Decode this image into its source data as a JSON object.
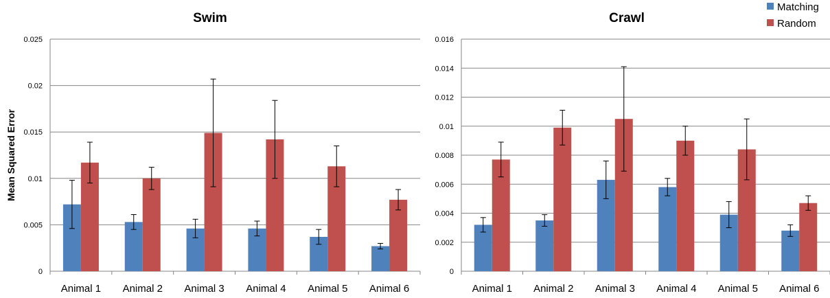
{
  "colors": {
    "matching": "#4f81bd",
    "random": "#c0504d",
    "grid": "#868686",
    "axis": "#868686"
  },
  "legend": [
    {
      "name": "Matching",
      "color": "#4f81bd"
    },
    {
      "name": "Random",
      "color": "#c0504d"
    }
  ],
  "chart_data": [
    {
      "type": "bar",
      "title": "Swim",
      "ylabel": "Mean Squared Error",
      "xlabel": "",
      "ylim": [
        0,
        0.025
      ],
      "yticks": [
        0,
        0.005,
        0.01,
        0.015,
        0.02,
        0.025
      ],
      "ytick_labels": [
        "0",
        "0.005",
        "0.01",
        "0.015",
        "0.02",
        "0.025"
      ],
      "grid": true,
      "categories": [
        "Animal 1",
        "Animal 2",
        "Animal 3",
        "Animal 4",
        "Animal 5",
        "Animal 6"
      ],
      "series": [
        {
          "name": "Matching",
          "values": [
            0.0072,
            0.0053,
            0.0046,
            0.0046,
            0.0037,
            0.0027
          ],
          "errors": [
            0.0026,
            0.0008,
            0.001,
            0.0008,
            0.0008,
            0.0003
          ]
        },
        {
          "name": "Random",
          "values": [
            0.0117,
            0.01,
            0.0149,
            0.0142,
            0.0113,
            0.0077
          ],
          "errors": [
            0.0022,
            0.0012,
            0.0058,
            0.0042,
            0.0022,
            0.0011
          ]
        }
      ]
    },
    {
      "type": "bar",
      "title": "Crawl",
      "ylabel": "",
      "xlabel": "",
      "ylim": [
        0,
        0.016
      ],
      "yticks": [
        0,
        0.002,
        0.004,
        0.006,
        0.008,
        0.01,
        0.012,
        0.014,
        0.016
      ],
      "ytick_labels": [
        "0",
        "0.002",
        "0.004",
        "0.006",
        "0.008",
        "0.01",
        "0.012",
        "0.014",
        "0.016"
      ],
      "grid": true,
      "categories": [
        "Animal 1",
        "Animal 2",
        "Animal 3",
        "Animal 4",
        "Animal 5",
        "Animal 6"
      ],
      "series": [
        {
          "name": "Matching",
          "values": [
            0.0032,
            0.0035,
            0.0063,
            0.0058,
            0.0039,
            0.0028
          ],
          "errors": [
            0.0005,
            0.0004,
            0.0013,
            0.0006,
            0.0009,
            0.0004
          ]
        },
        {
          "name": "Random",
          "values": [
            0.0077,
            0.0099,
            0.0105,
            0.009,
            0.0084,
            0.0047
          ],
          "errors": [
            0.0012,
            0.0012,
            0.0036,
            0.001,
            0.0021,
            0.0005
          ]
        }
      ]
    }
  ]
}
